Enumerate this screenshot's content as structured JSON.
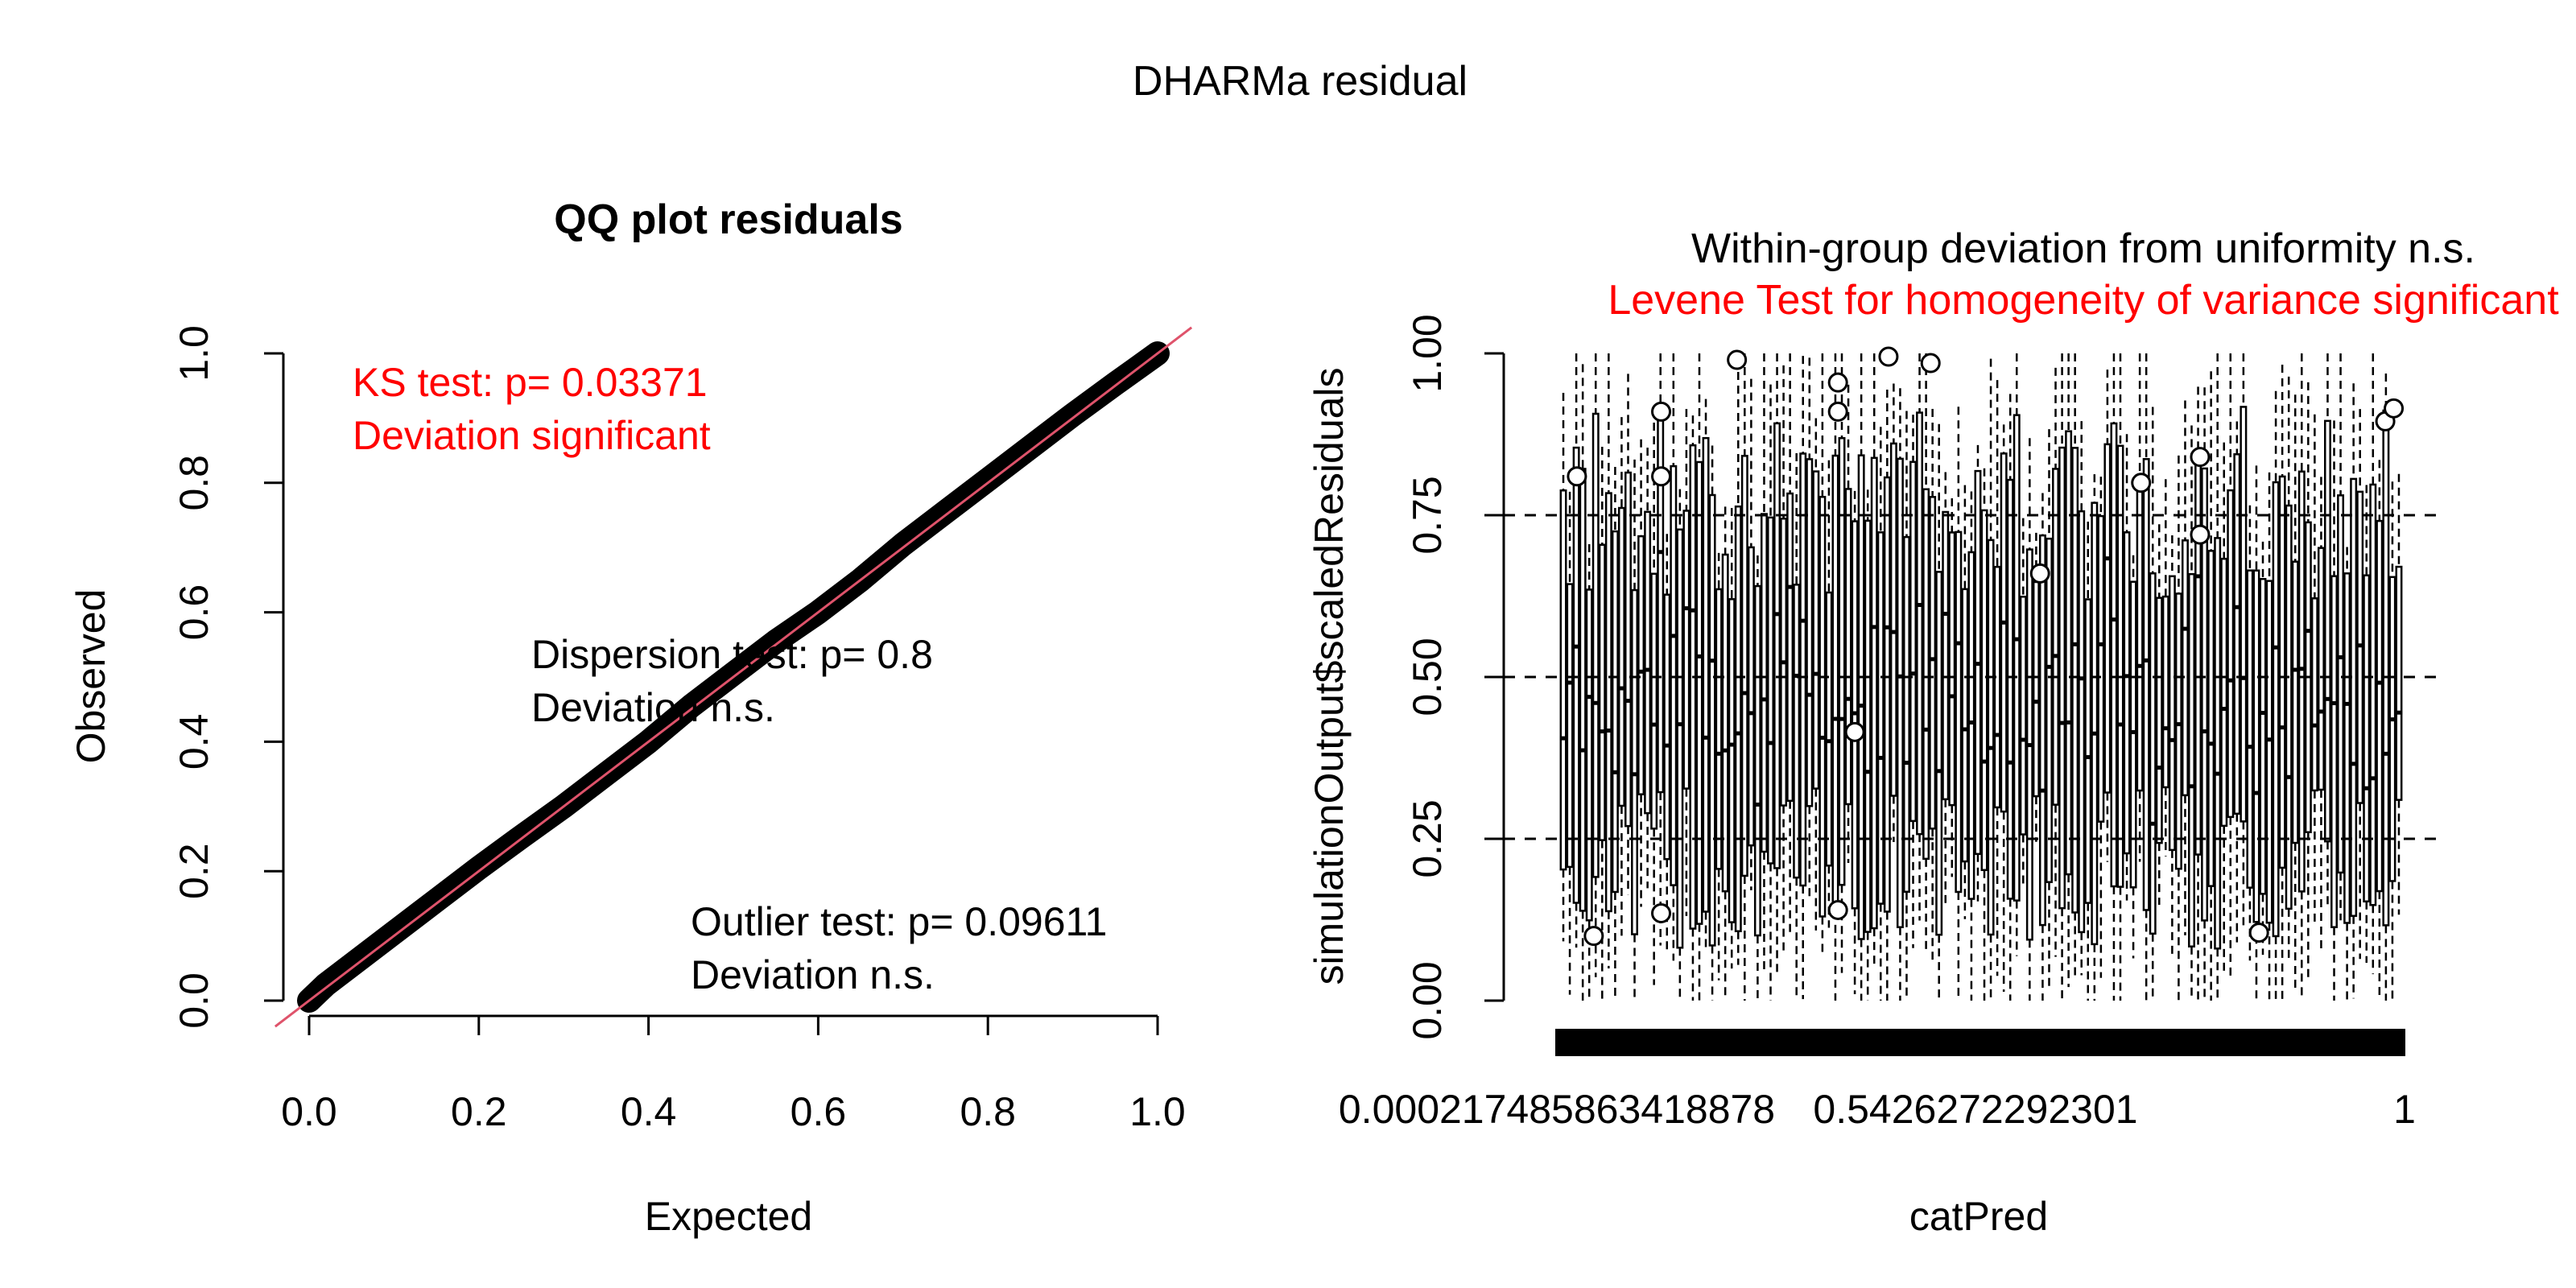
{
  "figure_title": "DHARMa residual",
  "colors": {
    "text": "#000000",
    "red": "#ff0000",
    "refline": "#df536b",
    "points": "#000000",
    "grid": "#000000"
  },
  "chart_data": [
    {
      "type": "scatter",
      "title": "QQ plot residuals",
      "xlabel": "Expected",
      "ylabel": "Observed",
      "xlim": [
        0,
        1
      ],
      "ylim": [
        0,
        1
      ],
      "xticks": [
        "0.0",
        "0.2",
        "0.4",
        "0.6",
        "0.8",
        "1.0"
      ],
      "yticks": [
        "0.0",
        "0.2",
        "0.4",
        "0.6",
        "0.8",
        "1.0"
      ],
      "reference_line": {
        "slope": 1,
        "intercept": 0
      },
      "series": [
        {
          "x": [
            0,
            0.02,
            0.05,
            0.1,
            0.15,
            0.2,
            0.25,
            0.3,
            0.35,
            0.4,
            0.45,
            0.5,
            0.55,
            0.6,
            0.65,
            0.7,
            0.75,
            0.8,
            0.85,
            0.9,
            0.95,
            1.0
          ],
          "y": [
            0,
            0.025,
            0.055,
            0.105,
            0.155,
            0.205,
            0.253,
            0.3,
            0.35,
            0.4,
            0.455,
            0.505,
            0.555,
            0.6,
            0.65,
            0.705,
            0.755,
            0.805,
            0.855,
            0.905,
            0.953,
            1.0
          ]
        }
      ],
      "annotations": {
        "ks_test": "KS test: p= 0.03371",
        "ks_deviation": "Deviation  significant",
        "dispersion_test": "Dispersion test: p= 0.8",
        "dispersion_deviation": "Deviation  n.s.",
        "outlier_test": "Outlier test: p= 0.09611",
        "outlier_deviation": "Deviation  n.s."
      }
    },
    {
      "type": "box",
      "title": "Within-group deviation from uniformity n.s.",
      "subtitle": "Levene Test for homogeneity of variance significant",
      "xlabel": "catPred",
      "ylabel": "simulationOutput$scaledResiduals",
      "ylim": [
        0,
        1
      ],
      "yticks": [
        "0.00",
        "0.25",
        "0.50",
        "0.75",
        "1.00"
      ],
      "xtick_labels": [
        "0.000217485863418878",
        "0.5426272292301",
        "1"
      ],
      "reference_lines": [
        0.25,
        0.5,
        0.75
      ],
      "box_count": 130,
      "outliers": [
        {
          "x": 0.02,
          "y": 0.81
        },
        {
          "x": 0.04,
          "y": 0.1
        },
        {
          "x": 0.12,
          "y": 0.91
        },
        {
          "x": 0.12,
          "y": 0.81
        },
        {
          "x": 0.12,
          "y": 0.135
        },
        {
          "x": 0.21,
          "y": 0.99
        },
        {
          "x": 0.33,
          "y": 0.955
        },
        {
          "x": 0.33,
          "y": 0.91
        },
        {
          "x": 0.33,
          "y": 0.14
        },
        {
          "x": 0.35,
          "y": 0.415
        },
        {
          "x": 0.39,
          "y": 0.995
        },
        {
          "x": 0.44,
          "y": 0.985
        },
        {
          "x": 0.57,
          "y": 0.66
        },
        {
          "x": 0.69,
          "y": 0.8
        },
        {
          "x": 0.76,
          "y": 0.84
        },
        {
          "x": 0.76,
          "y": 0.72
        },
        {
          "x": 0.83,
          "y": 0.105
        },
        {
          "x": 0.98,
          "y": 0.895
        },
        {
          "x": 0.99,
          "y": 0.915
        }
      ]
    }
  ]
}
